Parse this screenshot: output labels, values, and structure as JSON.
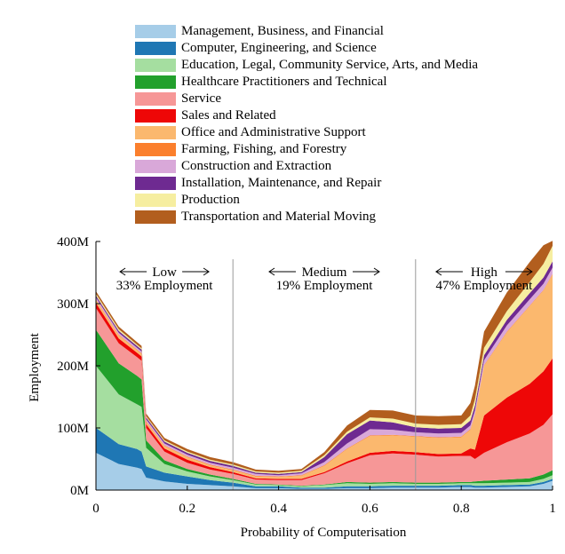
{
  "chart_data": {
    "type": "area",
    "stacked": true,
    "xlabel": "Probability of Computerisation",
    "ylabel": "Employment",
    "xlim": [
      0,
      1
    ],
    "ylim": [
      0,
      400
    ],
    "x_ticks": [
      0,
      0.2,
      0.4,
      0.6,
      0.8,
      1
    ],
    "x_tick_labels": [
      "0",
      "0.2",
      "0.4",
      "0.6",
      "0.8",
      "1"
    ],
    "y_ticks": [
      0,
      100,
      200,
      300,
      400
    ],
    "y_tick_labels": [
      "0M",
      "100M",
      "200M",
      "300M",
      "400M"
    ],
    "region_dividers": [
      0.3,
      0.7
    ],
    "regions": [
      {
        "label": "Low",
        "share": "33% Employment",
        "center": 0.15
      },
      {
        "label": "Medium",
        "share": "19% Employment",
        "center": 0.5
      },
      {
        "label": "High",
        "share": "47% Employment",
        "center": 0.85
      }
    ],
    "legend_position": "top",
    "x": [
      0,
      0.05,
      0.09,
      0.1,
      0.11,
      0.15,
      0.2,
      0.25,
      0.3,
      0.35,
      0.4,
      0.45,
      0.5,
      0.55,
      0.6,
      0.65,
      0.7,
      0.75,
      0.8,
      0.82,
      0.83,
      0.85,
      0.9,
      0.95,
      0.98,
      1
    ],
    "series": [
      {
        "name": "Management, Business, and Financial",
        "color": "#a6cde8",
        "values": [
          60,
          42,
          36,
          34,
          20,
          14,
          10,
          8,
          6,
          3,
          3,
          2,
          2,
          3,
          3,
          4,
          4,
          4,
          5,
          5,
          4,
          4,
          5,
          6,
          10,
          15
        ]
      },
      {
        "name": "Computer, Engineering, and Science",
        "color": "#1f77b4",
        "values": [
          40,
          32,
          30,
          28,
          18,
          14,
          12,
          8,
          6,
          3,
          3,
          2,
          2,
          3,
          3,
          3,
          3,
          3,
          3,
          3,
          3,
          3,
          3,
          3,
          3,
          3
        ]
      },
      {
        "name": "Education, Legal, Community Service, Arts, and Media",
        "color": "#a5dea0",
        "values": [
          100,
          80,
          72,
          72,
          30,
          14,
          8,
          6,
          4,
          3,
          2,
          2,
          4,
          5,
          4,
          4,
          3,
          3,
          3,
          3,
          4,
          4,
          4,
          4,
          5,
          6
        ]
      },
      {
        "name": "Healthcare Practitioners and Technical",
        "color": "#22a02c",
        "values": [
          58,
          50,
          46,
          44,
          12,
          6,
          4,
          3,
          2,
          1,
          1,
          1,
          1,
          2,
          2,
          2,
          2,
          2,
          2,
          2,
          3,
          4,
          5,
          6,
          7,
          8
        ]
      },
      {
        "name": "Service",
        "color": "#f69797",
        "values": [
          35,
          32,
          30,
          30,
          20,
          14,
          10,
          8,
          8,
          7,
          7,
          9,
          18,
          30,
          44,
          46,
          45,
          42,
          42,
          42,
          36,
          45,
          60,
          72,
          80,
          90
        ]
      },
      {
        "name": "Sales and Related",
        "color": "#ee0707",
        "values": [
          8,
          8,
          7,
          7,
          6,
          5,
          5,
          4,
          3,
          2,
          2,
          2,
          2,
          3,
          4,
          4,
          4,
          4,
          4,
          12,
          15,
          60,
          72,
          80,
          86,
          90
        ]
      },
      {
        "name": "Office and Administrative Support",
        "color": "#fbb86e",
        "values": [
          5,
          5,
          4,
          4,
          4,
          4,
          4,
          3,
          3,
          3,
          3,
          5,
          10,
          20,
          27,
          25,
          25,
          26,
          26,
          30,
          56,
          80,
          105,
          125,
          130,
          135
        ]
      },
      {
        "name": "Farming, Fishing, and Forestry",
        "color": "#fb7f2d",
        "values": [
          1,
          1,
          1,
          1,
          1,
          1,
          1,
          1,
          1,
          1,
          1,
          1,
          1,
          1,
          1,
          1,
          1,
          1,
          1,
          1,
          1,
          1,
          1,
          1,
          1,
          1
        ]
      },
      {
        "name": "Construction and Extraction",
        "color": "#d9a8d9",
        "values": [
          3,
          3,
          3,
          3,
          3,
          3,
          3,
          3,
          3,
          3,
          2,
          3,
          5,
          8,
          10,
          8,
          6,
          6,
          6,
          6,
          6,
          8,
          10,
          10,
          10,
          10
        ]
      },
      {
        "name": "Installation, Maintenance, and Repair",
        "color": "#6e2a91",
        "values": [
          3,
          3,
          3,
          3,
          3,
          3,
          3,
          3,
          3,
          2,
          2,
          2,
          8,
          15,
          14,
          12,
          8,
          8,
          8,
          8,
          8,
          8,
          9,
          10,
          10,
          10
        ]
      },
      {
        "name": "Production",
        "color": "#f6eea0",
        "values": [
          3,
          3,
          2,
          2,
          2,
          2,
          2,
          2,
          2,
          2,
          2,
          2,
          3,
          4,
          5,
          6,
          6,
          6,
          6,
          8,
          10,
          12,
          14,
          18,
          22,
          25
        ]
      },
      {
        "name": "Transportation and Material Moving",
        "color": "#b25e1e",
        "values": [
          4,
          4,
          4,
          4,
          4,
          4,
          4,
          4,
          4,
          3,
          3,
          3,
          5,
          10,
          12,
          13,
          13,
          14,
          14,
          20,
          22,
          26,
          30,
          32,
          30,
          8
        ]
      }
    ]
  }
}
